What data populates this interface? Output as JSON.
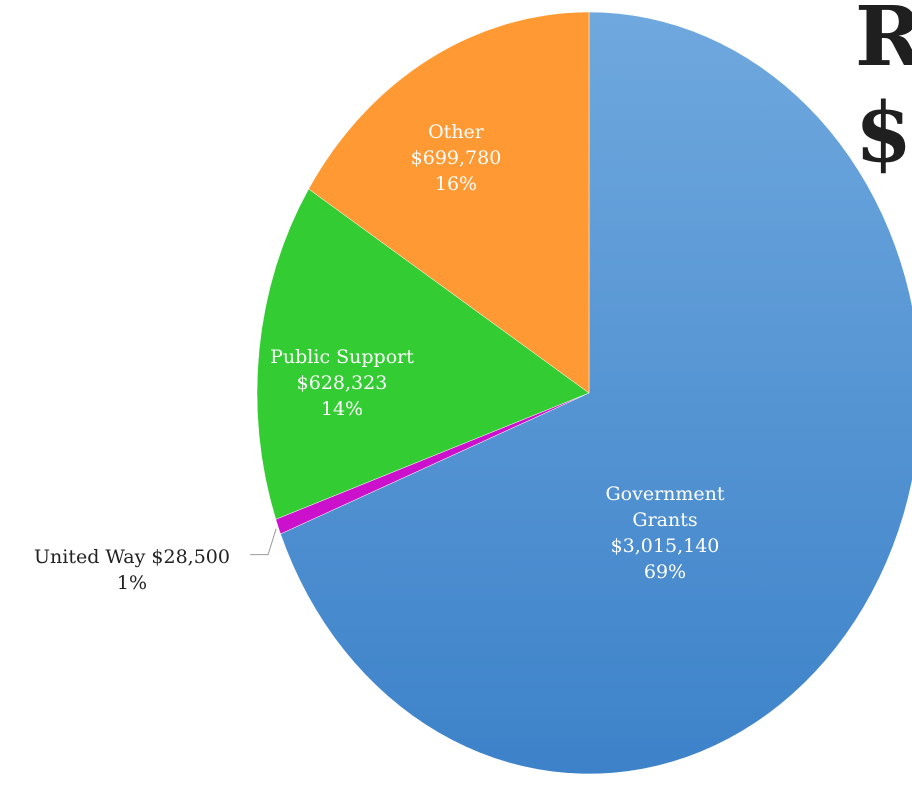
{
  "title_fragments": [
    "R",
    "$"
  ],
  "chart_data": {
    "type": "pie",
    "start_angle_deg": 0,
    "direction": "clockwise",
    "slices": [
      {
        "label": "Government Grants",
        "label_lines": [
          "Government",
          "Grants"
        ],
        "value": 3015140,
        "value_text": "$3,015,140",
        "percent_text": "69%",
        "color": "#4a8fd6"
      },
      {
        "label": "United Way",
        "label_lines": [
          "United Way $28,500"
        ],
        "value": 28500,
        "value_text": "",
        "percent_text": "1%",
        "color": "#cc11cc",
        "outside_label": true
      },
      {
        "label": "Public Support",
        "label_lines": [
          "Public Support"
        ],
        "value": 628323,
        "value_text": "$628,323",
        "percent_text": "14%",
        "color": "#33cc33"
      },
      {
        "label": "Other",
        "label_lines": [
          "Other"
        ],
        "value": 699780,
        "value_text": "$699,780",
        "percent_text": "16%",
        "color": "#ff9933"
      }
    ]
  }
}
